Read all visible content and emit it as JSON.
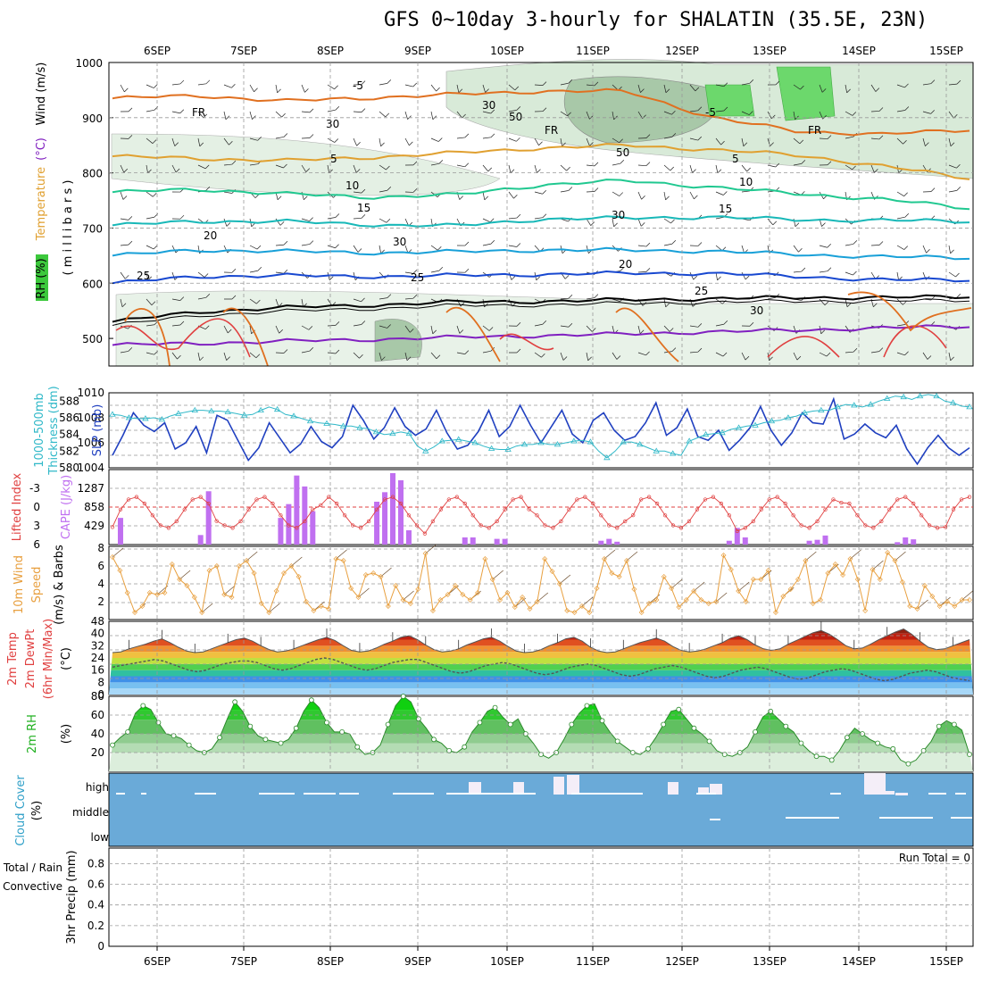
{
  "title": "GFS 0~10day 3-hourly for SHALATIN (35.5E, 23N)",
  "date_labels": [
    "6SEP",
    "7SEP",
    "8SEP",
    "9SEP",
    "10SEP",
    "11SEP",
    "12SEP",
    "13SEP",
    "14SEP",
    "15SEP"
  ],
  "colors": {
    "rh_green": "#3cc83c",
    "cloud_blue": "#6aaad8",
    "temp_red": "#e43c3c",
    "wind_orange": "#e8a040",
    "slp_blue": "#2040c0",
    "thick_cyan": "#30b8c8",
    "cape_purple": "#c070f0",
    "li_red": "#e04040"
  },
  "chart_data": [
    {
      "type": "heatmap",
      "panel": "upper-air",
      "ylabel_parts": [
        "RH (%)",
        "Temperature",
        "(°C)",
        "Wind (m/s)"
      ],
      "ylabel_units": "( m i l l i b a r s )",
      "y_ticks": [
        500,
        600,
        700,
        800,
        900,
        1000
      ],
      "ylim": [
        1000,
        450
      ],
      "contour_labels": [
        "-5",
        "FR",
        "5",
        "10",
        "15",
        "20",
        "25",
        "30"
      ],
      "rh_labels": [
        "30",
        "50"
      ],
      "temperature_levels": [
        {
          "label": "-5",
          "color": "#8020c0",
          "values": [
            488,
            491,
            495,
            498,
            502,
            505,
            508,
            512,
            515,
            519,
            522
          ]
        },
        {
          "label": "FR",
          "color": "#000000",
          "values": [
            530,
            548,
            556,
            560,
            566,
            567,
            570,
            572,
            574,
            574,
            576
          ]
        },
        {
          "label": "5",
          "color": "#1848d0",
          "values": [
            600,
            612,
            614,
            612,
            614,
            616,
            618,
            618,
            612,
            606,
            606
          ]
        },
        {
          "label": "10",
          "color": "#18a0d8",
          "values": [
            650,
            660,
            658,
            655,
            657,
            660,
            660,
            658,
            652,
            648,
            646
          ]
        },
        {
          "label": "15",
          "color": "#18b8b8",
          "values": [
            705,
            712,
            712,
            706,
            704,
            716,
            718,
            720,
            715,
            714,
            712
          ]
        },
        {
          "label": "20",
          "color": "#20c890",
          "values": [
            765,
            770,
            762,
            756,
            760,
            778,
            786,
            774,
            762,
            752,
            736
          ]
        },
        {
          "label": "25",
          "color": "#e0a030",
          "values": [
            830,
            826,
            822,
            828,
            836,
            845,
            850,
            842,
            832,
            812,
            790
          ]
        },
        {
          "label": "30",
          "color": "#e07020",
          "values": [
            935,
            940,
            930,
            936,
            942,
            948,
            948,
            900,
            875,
            870,
            878
          ]
        }
      ]
    },
    {
      "type": "line",
      "panel": "slp-thickness",
      "ylabel": "SLP (mb)",
      "ylabel2": "Thickness (dm)",
      "ylabel2_prefix": "1000-500mb",
      "y_ticks": [
        1004,
        1006,
        1008,
        1010
      ],
      "y2_ticks": [
        580,
        582,
        584,
        586,
        588
      ],
      "ylim": [
        1004,
        1010
      ],
      "series": [
        {
          "values": [
            1005.0,
            1006.6,
            1008.4,
            1007.4,
            1006.9,
            1007.6,
            1005.5,
            1006.0,
            1007.3,
            1005.2,
            1008.2,
            1007.8,
            1006.2,
            1004.6,
            1005.6,
            1007.6,
            1006.4,
            1005.2,
            1005.9,
            1007.3,
            1006.1,
            1005.6,
            1006.5,
            1009.0,
            1007.8,
            1006.3,
            1007.2,
            1008.8,
            1007.3,
            1006.6,
            1007.1,
            1008.6,
            1006.8,
            1005.5,
            1005.8,
            1006.9,
            1008.6,
            1006.5,
            1007.3,
            1009.0,
            1007.4,
            1006.0,
            1007.3,
            1008.6,
            1006.7,
            1006.0,
            1007.8,
            1008.4,
            1007.0,
            1006.2,
            1006.5,
            1007.6,
            1009.2,
            1006.6,
            1007.2,
            1008.7,
            1006.5,
            1006.2,
            1007.0,
            1005.4,
            1006.2,
            1007.2,
            1008.9,
            1007.0,
            1005.8,
            1006.8,
            1008.4,
            1007.6,
            1007.5,
            1009.5,
            1006.3,
            1006.7,
            1007.5,
            1006.8,
            1006.4,
            1007.4,
            1005.5,
            1004.3,
            1005.6,
            1006.6,
            1005.6,
            1005.0,
            1005.6
          ]
        },
        {
          "values": [
            586.4,
            586.3,
            586.0,
            585.9,
            585.9,
            586.0,
            585.8,
            586.2,
            586.5,
            586.7,
            586.9,
            586.9,
            586.8,
            586.8,
            586.7,
            586.5,
            586.3,
            586.4,
            586.9,
            587.3,
            587.0,
            586.4,
            586.2,
            585.9,
            585.6,
            585.4,
            585.3,
            585.2,
            585.0,
            585.0,
            584.8,
            584.7,
            584.3,
            584.0,
            584.1,
            584.3,
            584.1,
            582.6,
            582.0,
            582.5,
            583.2,
            583.3,
            583.4,
            583.2,
            583.0,
            582.6,
            582.3,
            582.2,
            582.2,
            582.6,
            582.8,
            582.8,
            583.0,
            582.8,
            582.8,
            583.0,
            583.2,
            583.3,
            583.1,
            582.0,
            581.2,
            582.0,
            583.1,
            583.1,
            582.8,
            582.4,
            582.0,
            582.0,
            581.7,
            581.5,
            583.2,
            583.6,
            584.0,
            584.1,
            584.2,
            584.6,
            584.8,
            585.0,
            585.1,
            585.4,
            585.6,
            585.7,
            586.0,
            586.2,
            586.6,
            586.8,
            586.9,
            586.9,
            587.3,
            587.6,
            587.5,
            587.3,
            587.6,
            588.0,
            588.3,
            588.6,
            588.5,
            588.2,
            588.6,
            588.8,
            588.6,
            588.0,
            587.8,
            587.4,
            587.3
          ]
        }
      ]
    },
    {
      "type": "bar",
      "panel": "cape-lifted-index",
      "ylabel": "Lifted Index",
      "ylabel2": "CAPE (J/kg)",
      "y_ticks": [
        "-3",
        "0",
        "3",
        "6"
      ],
      "y2_ticks": [
        429,
        858,
        1287
      ],
      "series": [
        {
          "values": [
            0,
            500,
            0,
            0,
            0,
            0,
            0,
            0,
            0,
            0,
            0,
            200,
            1100,
            0,
            0,
            0,
            0,
            0,
            0,
            0,
            0,
            0,
            0,
            0,
            0,
            0,
            0,
            0,
            0,
            0,
            0,
            0,
            0,
            0,
            0,
            0,
            0,
            0,
            0,
            0,
            0,
            0,
            0,
            0,
            0,
            0,
            0,
            0,
            0,
            0,
            0,
            0,
            0,
            0,
            0,
            0,
            0,
            0,
            0,
            0,
            0,
            0,
            0,
            0,
            0,
            0,
            0,
            0,
            0,
            0,
            0,
            0,
            0,
            0,
            0,
            0,
            0,
            0,
            0,
            0,
            0,
            0,
            0,
            0
          ]
        }
      ]
    },
    {
      "type": "line",
      "panel": "10m-wind",
      "ylabel": "10m Wind",
      "ylabel_lines": [
        "Speed",
        "(m/s) & Barbs"
      ],
      "y_ticks": [
        2,
        4,
        6,
        8
      ],
      "ylim": [
        0,
        8
      ],
      "series": [
        {
          "values": [
            7.0,
            5.5,
            3.0,
            0.8,
            1.5,
            3.0,
            2.8,
            3.0,
            6.2,
            4.5,
            3.8,
            2.5,
            0.8,
            5.5,
            6.0,
            2.8,
            2.5,
            6.0,
            6.6,
            5.2,
            1.8,
            0.8,
            3.2,
            5.2,
            6.0,
            4.8,
            2.0,
            1.0,
            1.5,
            1.2,
            6.8,
            6.6,
            3.5,
            2.5,
            5.0,
            5.2,
            4.8,
            1.5,
            3.8,
            2.2,
            1.8,
            3.4,
            7.4,
            1.0,
            2.2,
            2.8,
            3.8,
            2.8,
            2.2,
            3.0,
            6.8,
            4.5,
            2.2,
            3.0,
            1.4,
            2.5,
            1.2,
            2.0,
            6.8,
            5.4,
            4.0,
            1.0,
            0.8,
            1.5,
            0.8,
            3.5,
            6.8,
            5.2,
            4.8,
            6.6,
            3.4,
            0.8,
            1.8,
            2.2,
            4.8,
            3.5,
            1.4,
            2.2,
            3.2,
            2.2,
            1.8,
            2.0,
            7.2,
            5.6,
            3.2,
            2.0,
            4.5,
            4.5,
            5.5,
            0.8,
            2.6,
            3.4,
            4.5,
            6.6,
            1.8,
            2.2,
            5.2,
            6.2,
            5.0,
            6.8,
            4.5,
            1.0,
            5.6,
            4.5,
            7.5,
            6.6,
            4.2,
            1.5,
            1.2,
            3.8,
            2.6,
            1.5,
            2.0,
            1.5,
            2.2,
            2.2
          ]
        }
      ]
    },
    {
      "type": "area",
      "panel": "2m-temp-dewpoint",
      "ylabel": "2m Temp",
      "ylabel_lines": [
        "2m DewPt",
        "(6hr Min/Max)"
      ],
      "yunit": "(°C)",
      "y_ticks": [
        8,
        16,
        24,
        32,
        40,
        48
      ],
      "ylim": [
        0,
        48
      ],
      "series": [
        {
          "name": "Temperature",
          "values": [
            27.5,
            28,
            30,
            31.5,
            33,
            35,
            36.5,
            34,
            31,
            28.5,
            27.5,
            28,
            30,
            32,
            34,
            36,
            37,
            35,
            32,
            29.5,
            28,
            28.5,
            30,
            32,
            34,
            36,
            37.5,
            35.5,
            32,
            29,
            28,
            28.5,
            30.5,
            33,
            35,
            37.5,
            38.5,
            36,
            32.5,
            29.5,
            28,
            28.5,
            30,
            32.5,
            34.5,
            36.5,
            37.5,
            35,
            31.5,
            28.5,
            27.5,
            28,
            29.5,
            32,
            34,
            36.5,
            37.5,
            35,
            31,
            28.5,
            27.5,
            28,
            30,
            32,
            34,
            35.5,
            37,
            35,
            31.5,
            29,
            28,
            28.5,
            30,
            32,
            34,
            37,
            38.5,
            36,
            32.5,
            30,
            29,
            30,
            33,
            35.5,
            38,
            40.5,
            42,
            39.5,
            36,
            32,
            30,
            30.5,
            33,
            36,
            38.5,
            41,
            43,
            39.5,
            35,
            31,
            29.5,
            30,
            32,
            34,
            36
          ]
        },
        {
          "name": "Dew Point",
          "values": [
            18,
            19,
            20,
            21,
            22,
            23,
            22,
            20,
            18,
            16,
            15,
            16,
            18,
            20,
            21,
            22,
            22,
            21,
            19,
            17,
            16,
            17,
            19,
            21,
            23,
            24,
            23,
            21,
            19,
            17,
            16,
            17,
            19,
            21,
            22,
            23,
            23,
            21,
            19,
            17,
            15,
            14,
            15,
            17,
            19,
            20,
            21,
            20,
            18,
            16,
            14,
            13,
            14,
            16,
            18,
            19,
            20,
            19,
            17,
            15,
            13,
            12,
            13,
            15,
            17,
            18,
            19,
            18,
            16,
            14,
            12,
            11,
            12,
            14,
            16,
            17,
            18,
            17,
            15,
            13,
            11,
            10,
            11,
            13,
            15,
            16,
            17,
            16,
            14,
            12,
            10,
            9,
            10,
            12,
            14,
            15,
            16,
            15,
            13,
            11,
            10,
            9
          ]
        }
      ]
    },
    {
      "type": "area",
      "panel": "2m-rh",
      "ylabel": "2m RH",
      "yunit": "(%)",
      "y_ticks": [
        20,
        40,
        60,
        80
      ],
      "ylim": [
        0,
        80
      ],
      "series": [
        {
          "values": [
            28,
            36,
            42,
            62,
            70,
            66,
            52,
            40,
            38,
            35,
            28,
            22,
            20,
            24,
            36,
            56,
            74,
            64,
            48,
            38,
            34,
            32,
            30,
            34,
            46,
            64,
            76,
            68,
            52,
            42,
            42,
            40,
            26,
            18,
            20,
            28,
            50,
            70,
            80,
            74,
            56,
            46,
            34,
            30,
            22,
            20,
            26,
            42,
            52,
            64,
            68,
            58,
            50,
            56,
            40,
            30,
            18,
            14,
            20,
            34,
            50,
            62,
            70,
            72,
            54,
            42,
            32,
            26,
            20,
            18,
            24,
            36,
            50,
            64,
            66,
            56,
            46,
            40,
            32,
            22,
            18,
            16,
            20,
            26,
            42,
            58,
            64,
            56,
            48,
            42,
            30,
            22,
            16,
            16,
            12,
            22,
            36,
            46,
            40,
            34,
            30,
            26,
            24,
            12,
            8,
            12,
            22,
            32,
            48,
            54,
            50,
            44,
            18
          ]
        }
      ]
    },
    {
      "type": "bar",
      "panel": "cloud-cover",
      "ylabel": "Cloud Cover",
      "yunit": "(%)",
      "y_ticks": [
        "high",
        "middle",
        "low"
      ],
      "series": []
    },
    {
      "type": "bar",
      "panel": "3hr-precip",
      "ylabel": "3hr Precip (mm)",
      "ylabel_lines": [
        "Total / Rain",
        "Convective"
      ],
      "y_ticks": [
        0,
        0.2,
        0.4,
        0.6,
        0.8
      ],
      "ylim": [
        0,
        0.95
      ],
      "annotation": "Run Total = 0",
      "series": []
    }
  ]
}
